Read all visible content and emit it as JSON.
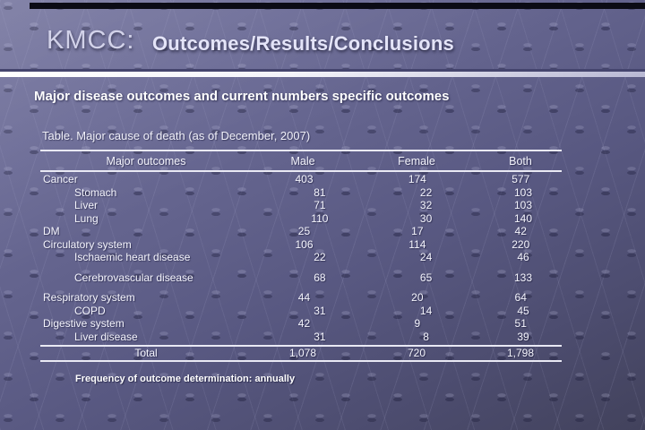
{
  "header": {
    "brand": "KMCC:",
    "title": "Outcomes/Results/Conclusions"
  },
  "subtitle": "Major disease outcomes and current numbers specific outcomes",
  "table_caption": "Table. Major cause of death (as of December, 2007)",
  "table": {
    "columns": [
      "Major outcomes",
      "Male",
      "Female",
      "Both"
    ],
    "rows": [
      {
        "label": "Cancer",
        "indent": 0,
        "male": "403",
        "female": "174",
        "both": "577",
        "gap": false
      },
      {
        "label": "Stomach",
        "indent": 1,
        "male": "81",
        "female": "22",
        "both": "103",
        "gap": false
      },
      {
        "label": "Liver",
        "indent": 1,
        "male": "71",
        "female": "32",
        "both": "103",
        "gap": false
      },
      {
        "label": "Lung",
        "indent": 1,
        "male": "110",
        "female": "30",
        "both": "140",
        "gap": false
      },
      {
        "label": "DM",
        "indent": 0,
        "male": "25",
        "female": "17",
        "both": "42",
        "gap": false
      },
      {
        "label": "Circulatory system",
        "indent": 0,
        "male": "106",
        "female": "114",
        "both": "220",
        "gap": false
      },
      {
        "label": "Ischaemic heart disease",
        "indent": 1,
        "male": "22",
        "female": "24",
        "both": "46",
        "gap": false
      },
      {
        "label": "Cerebrovascular disease",
        "indent": 1,
        "male": "68",
        "female": "65",
        "both": "133",
        "gap": true
      },
      {
        "label": "Respiratory system",
        "indent": 0,
        "male": "44",
        "female": "20",
        "both": "64",
        "gap": true
      },
      {
        "label": "COPD",
        "indent": 1,
        "male": "31",
        "female": "14",
        "both": "45",
        "gap": false
      },
      {
        "label": "Digestive system",
        "indent": 0,
        "male": "42",
        "female": "9",
        "both": "51",
        "gap": false
      },
      {
        "label": "Liver disease",
        "indent": 1,
        "male": "31",
        "female": "8",
        "both": "39",
        "gap": false
      }
    ],
    "total": {
      "label": "Total",
      "male": "1,078",
      "female": "720",
      "both": "1,798"
    }
  },
  "footnote": "Frequency of outcome determination: annually",
  "colors": {
    "background_top": "#76769f",
    "background_bottom": "#42425c",
    "top_bar": "#0b0b15",
    "divider_dark": "#45456e",
    "divider_light": "#ffffff",
    "text": "#f4f4fc",
    "table_line": "#e9e9f4"
  }
}
